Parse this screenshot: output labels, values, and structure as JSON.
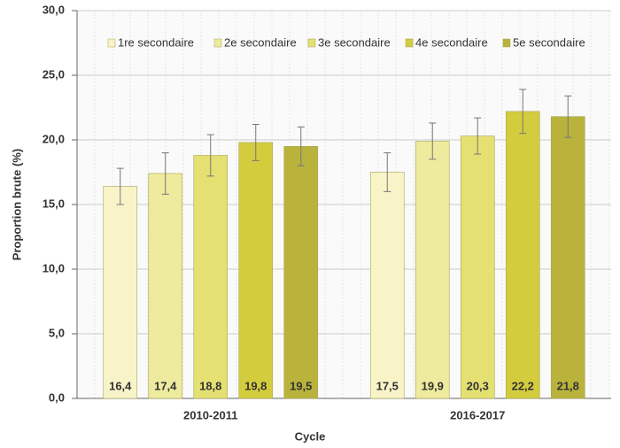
{
  "chart_data": {
    "type": "bar",
    "x_label": "Cycle",
    "y_label": "Proportion brute (%)",
    "categories": [
      "2010-2011",
      "2016-2017"
    ],
    "series": [
      {
        "name": "1re secondaire",
        "color": "#f8f4c8",
        "values": [
          16.4,
          17.5
        ],
        "value_labels": [
          "16,4",
          "17,5"
        ],
        "errors": [
          1.4,
          1.5
        ]
      },
      {
        "name": "2e secondaire",
        "color": "#eeea9e",
        "values": [
          17.4,
          19.9
        ],
        "value_labels": [
          "17,4",
          "19,9"
        ],
        "errors": [
          1.6,
          1.4
        ]
      },
      {
        "name": "3e secondaire",
        "color": "#e4e072",
        "values": [
          18.8,
          20.3
        ],
        "value_labels": [
          "18,8",
          "20,3"
        ],
        "errors": [
          1.6,
          1.4
        ]
      },
      {
        "name": "4e secondaire",
        "color": "#d3cd3e",
        "values": [
          19.8,
          22.2
        ],
        "value_labels": [
          "19,8",
          "22,2"
        ],
        "errors": [
          1.4,
          1.7
        ]
      },
      {
        "name": "5e secondaire",
        "color": "#b9b33c",
        "values": [
          19.5,
          21.8
        ],
        "value_labels": [
          "19,5",
          "21,8"
        ],
        "errors": [
          1.5,
          1.6
        ]
      }
    ],
    "ylim": [
      0,
      30
    ],
    "yticks": [
      {
        "value": 0,
        "label": "0,0"
      },
      {
        "value": 5,
        "label": "5,0"
      },
      {
        "value": 10,
        "label": "10,0"
      },
      {
        "value": 15,
        "label": "15,0"
      },
      {
        "value": 20,
        "label": "20,0"
      },
      {
        "value": 25,
        "label": "25,0"
      },
      {
        "value": 30,
        "label": "30,0"
      }
    ],
    "grid": true
  }
}
